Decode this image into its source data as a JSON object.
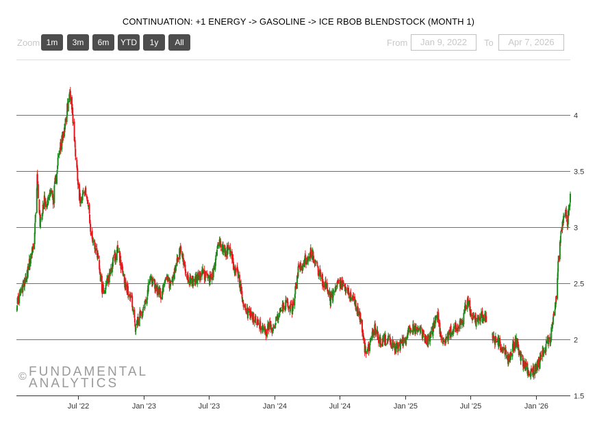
{
  "header": {
    "title": "CONTINUATION: +1 ENERGY -> GASOLINE -> ICE RBOB BLENDSTOCK (MONTH 1)"
  },
  "zoom": {
    "label": "Zoom",
    "buttons": [
      "1m",
      "3m",
      "6m",
      "YTD",
      "1y",
      "All"
    ]
  },
  "range": {
    "from_label": "From",
    "from_value": "Jan 9, 2022",
    "to_label": "To",
    "to_value": "Apr 7, 2026"
  },
  "watermark": {
    "symbol": "©",
    "line1": "FUNDAMENTAL",
    "line2": "ANALYTICS"
  },
  "colors": {
    "up": "#1a8a1a",
    "down": "#e8161b",
    "gridline": "#6e6e6e",
    "axis": "#333333"
  },
  "chart_data": {
    "type": "candlestick",
    "y_axis": {
      "position": "right",
      "min": 1.5,
      "max": 4.0,
      "ticks": [
        1.5,
        2,
        2.5,
        3,
        3.5,
        4
      ],
      "tick_labels": [
        "1.5",
        "2",
        "2.5",
        "3",
        "3.5",
        "4"
      ]
    },
    "x_axis": {
      "min": "2022-01-09",
      "max": "2026-04-07",
      "ticks": [
        "2022-07-01",
        "2023-01-01",
        "2023-07-01",
        "2024-01-01",
        "2024-07-01",
        "2025-01-01",
        "2025-07-01",
        "2026-01-01"
      ],
      "tick_labels": [
        "Jul '22",
        "Jan '23",
        "Jul '23",
        "Jan '24",
        "Jul '24",
        "Jan '25",
        "Jul '25",
        "Jan '26"
      ]
    },
    "grid": true,
    "series": [
      {
        "name": "",
        "price_anchors": [
          [
            "2022-01-10",
            2.32
          ],
          [
            "2022-01-25",
            2.45
          ],
          [
            "2022-02-10",
            2.62
          ],
          [
            "2022-02-28",
            2.85
          ],
          [
            "2022-03-08",
            3.45
          ],
          [
            "2022-03-16",
            3.05
          ],
          [
            "2022-03-28",
            3.25
          ],
          [
            "2022-04-05",
            3.2
          ],
          [
            "2022-04-15",
            3.35
          ],
          [
            "2022-04-22",
            3.25
          ],
          [
            "2022-05-05",
            3.6
          ],
          [
            "2022-05-18",
            3.8
          ],
          [
            "2022-05-28",
            4.0
          ],
          [
            "2022-06-08",
            4.2
          ],
          [
            "2022-06-14",
            4.05
          ],
          [
            "2022-06-22",
            3.7
          ],
          [
            "2022-07-05",
            3.25
          ],
          [
            "2022-07-15",
            3.3
          ],
          [
            "2022-07-25",
            3.3
          ],
          [
            "2022-08-05",
            2.95
          ],
          [
            "2022-08-15",
            2.85
          ],
          [
            "2022-08-25",
            2.75
          ],
          [
            "2022-09-05",
            2.45
          ],
          [
            "2022-09-15",
            2.45
          ],
          [
            "2022-09-28",
            2.6
          ],
          [
            "2022-10-07",
            2.7
          ],
          [
            "2022-10-20",
            2.8
          ],
          [
            "2022-11-05",
            2.55
          ],
          [
            "2022-11-15",
            2.45
          ],
          [
            "2022-11-28",
            2.35
          ],
          [
            "2022-12-08",
            2.08
          ],
          [
            "2022-12-20",
            2.2
          ],
          [
            "2023-01-05",
            2.35
          ],
          [
            "2023-01-20",
            2.55
          ],
          [
            "2023-02-05",
            2.45
          ],
          [
            "2023-02-20",
            2.4
          ],
          [
            "2023-03-05",
            2.55
          ],
          [
            "2023-03-18",
            2.45
          ],
          [
            "2023-04-05",
            2.72
          ],
          [
            "2023-04-15",
            2.8
          ],
          [
            "2023-05-01",
            2.55
          ],
          [
            "2023-05-15",
            2.5
          ],
          [
            "2023-06-01",
            2.55
          ],
          [
            "2023-06-15",
            2.6
          ],
          [
            "2023-07-01",
            2.52
          ],
          [
            "2023-07-15",
            2.6
          ],
          [
            "2023-07-28",
            2.88
          ],
          [
            "2023-08-15",
            2.78
          ],
          [
            "2023-08-28",
            2.8
          ],
          [
            "2023-09-08",
            2.65
          ],
          [
            "2023-09-20",
            2.6
          ],
          [
            "2023-10-02",
            2.38
          ],
          [
            "2023-10-15",
            2.25
          ],
          [
            "2023-10-28",
            2.2
          ],
          [
            "2023-11-10",
            2.18
          ],
          [
            "2023-11-25",
            2.12
          ],
          [
            "2023-12-05",
            2.05
          ],
          [
            "2023-12-15",
            2.12
          ],
          [
            "2023-12-28",
            2.1
          ],
          [
            "2024-01-10",
            2.2
          ],
          [
            "2024-01-25",
            2.28
          ],
          [
            "2024-02-05",
            2.32
          ],
          [
            "2024-02-20",
            2.25
          ],
          [
            "2024-03-05",
            2.6
          ],
          [
            "2024-03-18",
            2.65
          ],
          [
            "2024-04-05",
            2.75
          ],
          [
            "2024-04-12",
            2.78
          ],
          [
            "2024-04-25",
            2.68
          ],
          [
            "2024-05-10",
            2.55
          ],
          [
            "2024-05-25",
            2.45
          ],
          [
            "2024-06-05",
            2.35
          ],
          [
            "2024-06-20",
            2.45
          ],
          [
            "2024-07-03",
            2.5
          ],
          [
            "2024-07-15",
            2.45
          ],
          [
            "2024-08-01",
            2.38
          ],
          [
            "2024-08-15",
            2.3
          ],
          [
            "2024-08-28",
            2.2
          ],
          [
            "2024-09-06",
            1.98
          ],
          [
            "2024-09-12",
            1.88
          ],
          [
            "2024-09-25",
            1.98
          ],
          [
            "2024-10-07",
            2.1
          ],
          [
            "2024-10-22",
            1.98
          ],
          [
            "2024-11-05",
            2.0
          ],
          [
            "2024-11-20",
            1.98
          ],
          [
            "2024-12-05",
            1.92
          ],
          [
            "2024-12-20",
            1.95
          ],
          [
            "2025-01-05",
            2.0
          ],
          [
            "2025-01-15",
            2.12
          ],
          [
            "2025-01-30",
            2.08
          ],
          [
            "2025-02-15",
            2.05
          ],
          [
            "2025-03-01",
            1.98
          ],
          [
            "2025-03-15",
            2.05
          ],
          [
            "2025-04-02",
            2.25
          ],
          [
            "2025-04-10",
            2.0
          ],
          [
            "2025-04-25",
            2.0
          ],
          [
            "2025-05-10",
            2.08
          ],
          [
            "2025-05-25",
            2.1
          ],
          [
            "2025-06-10",
            2.15
          ],
          [
            "2025-06-22",
            2.35
          ],
          [
            "2025-07-05",
            2.22
          ],
          [
            "2025-07-20",
            2.15
          ],
          [
            "2025-08-01",
            2.2
          ],
          [
            "2025-08-15",
            2.18
          ]
        ],
        "price_anchors_2": [
          [
            "2025-09-01",
            2.0
          ],
          [
            "2025-09-15",
            1.98
          ],
          [
            "2025-10-01",
            1.92
          ],
          [
            "2025-10-15",
            1.82
          ],
          [
            "2025-10-25",
            1.9
          ],
          [
            "2025-11-05",
            1.98
          ],
          [
            "2025-11-15",
            1.9
          ],
          [
            "2025-11-25",
            1.8
          ],
          [
            "2025-12-05",
            1.75
          ],
          [
            "2025-12-15",
            1.7
          ],
          [
            "2025-12-28",
            1.72
          ],
          [
            "2026-01-10",
            1.8
          ],
          [
            "2026-01-20",
            1.9
          ],
          [
            "2026-02-01",
            1.95
          ],
          [
            "2026-02-10",
            2.0
          ],
          [
            "2026-02-25",
            2.3
          ],
          [
            "2026-03-02",
            2.55
          ],
          [
            "2026-03-06",
            2.75
          ],
          [
            "2026-03-12",
            2.95
          ],
          [
            "2026-03-18",
            3.05
          ],
          [
            "2026-03-24",
            3.15
          ],
          [
            "2026-03-30",
            3.05
          ],
          [
            "2026-04-07",
            3.25
          ]
        ]
      }
    ]
  }
}
